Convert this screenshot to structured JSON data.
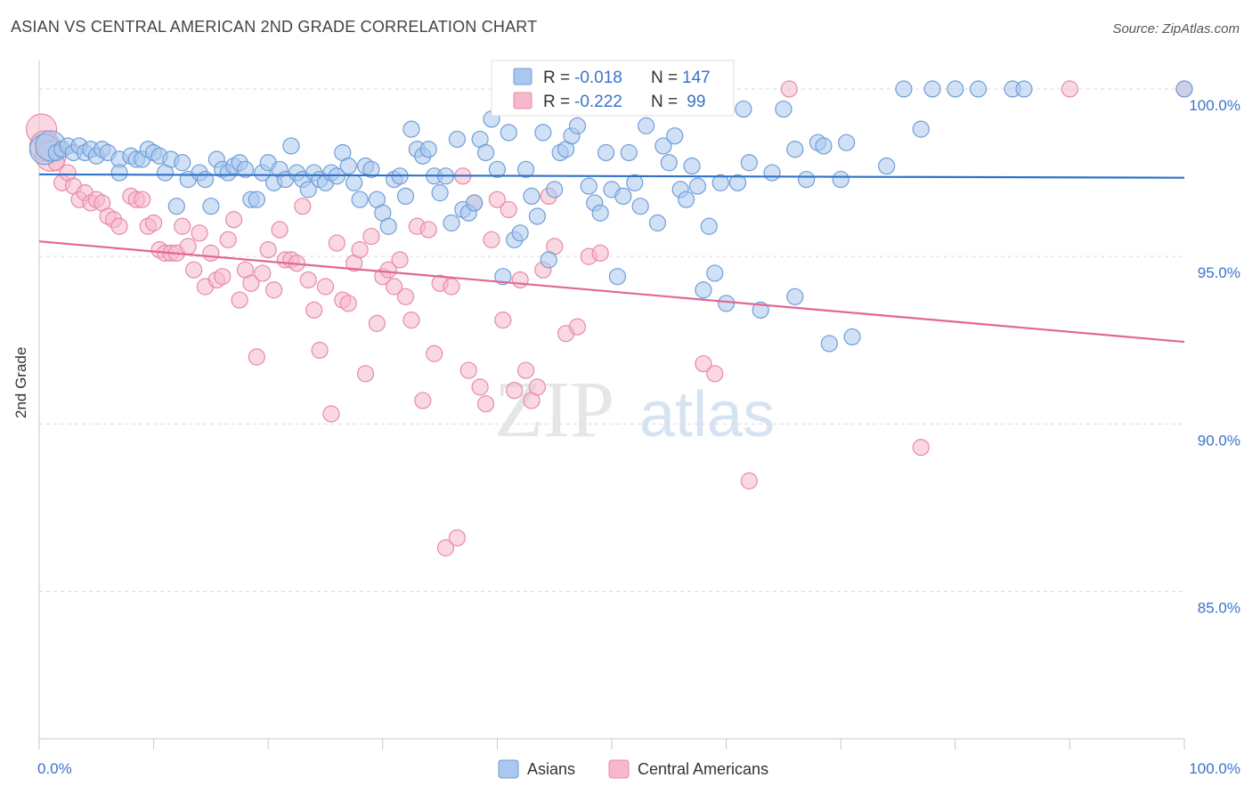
{
  "header": {
    "title": "ASIAN VS CENTRAL AMERICAN 2ND GRADE CORRELATION CHART",
    "source": "Source: ZipAtlas.com"
  },
  "watermark": {
    "zip": "ZIP",
    "atlas": "atlas"
  },
  "legend_top": {
    "row1": {
      "r_label": "R =",
      "r_value": "-0.018",
      "n_label": "N =",
      "n_value": "147"
    },
    "row2": {
      "r_label": "R =",
      "r_value": "-0.222",
      "n_label": "N =",
      "n_value": " 99"
    }
  },
  "legend_bottom": {
    "asians": "Asians",
    "central": "Central Americans"
  },
  "axis": {
    "x_min_label": "0.0%",
    "x_max_label": "100.0%",
    "y_label": "2nd Grade",
    "y_ticks": [
      "100.0%",
      "95.0%",
      "90.0%",
      "85.0%"
    ]
  },
  "colors": {
    "asian_fill": "#aac8ef",
    "asian_stroke": "#6f9ed8",
    "asian_line": "#2f72c8",
    "central_fill": "#f6b8cb",
    "central_stroke": "#e88aa8",
    "central_line": "#e26794",
    "accent_text": "#3a73c9",
    "grid": "#d9d9d9"
  },
  "chart_data": {
    "type": "scatter",
    "xlim": [
      0,
      100
    ],
    "ylim": [
      80.6,
      100.85
    ],
    "y_ticks": [
      100,
      95,
      90,
      85
    ],
    "grid": true,
    "series": [
      {
        "name": "Asians",
        "trend": [
          [
            0,
            97.45
          ],
          [
            100,
            97.35
          ]
        ],
        "points": [
          [
            0.5,
            98.2
          ],
          [
            1,
            98.3
          ],
          [
            1.5,
            98.1
          ],
          [
            2,
            98.2
          ],
          [
            2.5,
            98.3
          ],
          [
            3,
            98.1
          ],
          [
            3.5,
            98.3
          ],
          [
            4,
            98.1
          ],
          [
            4.5,
            98.2
          ],
          [
            5,
            98.0
          ],
          [
            5.5,
            98.2
          ],
          [
            6,
            98.1
          ],
          [
            7,
            97.9
          ],
          [
            7,
            97.5
          ],
          [
            8,
            98.0
          ],
          [
            8.5,
            97.9
          ],
          [
            9,
            97.9
          ],
          [
            9.5,
            98.2
          ],
          [
            10,
            98.1
          ],
          [
            10.5,
            98.0
          ],
          [
            11,
            97.5
          ],
          [
            11.5,
            97.9
          ],
          [
            12,
            96.5
          ],
          [
            12.5,
            97.8
          ],
          [
            13,
            97.3
          ],
          [
            14,
            97.5
          ],
          [
            14.5,
            97.3
          ],
          [
            15,
            96.5
          ],
          [
            15.5,
            97.9
          ],
          [
            16,
            97.6
          ],
          [
            16.5,
            97.5
          ],
          [
            17,
            97.7
          ],
          [
            17.5,
            97.8
          ],
          [
            18,
            97.6
          ],
          [
            18.5,
            96.7
          ],
          [
            19,
            96.7
          ],
          [
            19.5,
            97.5
          ],
          [
            20,
            97.8
          ],
          [
            20.5,
            97.2
          ],
          [
            21,
            97.6
          ],
          [
            21.5,
            97.3
          ],
          [
            22,
            98.3
          ],
          [
            22.5,
            97.5
          ],
          [
            23,
            97.3
          ],
          [
            23.5,
            97.0
          ],
          [
            24,
            97.5
          ],
          [
            24.5,
            97.3
          ],
          [
            25,
            97.2
          ],
          [
            25.5,
            97.5
          ],
          [
            26,
            97.4
          ],
          [
            26.5,
            98.1
          ],
          [
            27,
            97.7
          ],
          [
            27.5,
            97.2
          ],
          [
            28,
            96.7
          ],
          [
            28.5,
            97.7
          ],
          [
            29,
            97.6
          ],
          [
            29.5,
            96.7
          ],
          [
            30,
            96.3
          ],
          [
            30.5,
            95.9
          ],
          [
            31,
            97.3
          ],
          [
            31.5,
            97.4
          ],
          [
            32,
            96.8
          ],
          [
            32.5,
            98.8
          ],
          [
            33,
            98.2
          ],
          [
            33.5,
            98.0
          ],
          [
            34,
            98.2
          ],
          [
            34.5,
            97.4
          ],
          [
            35,
            96.9
          ],
          [
            35.5,
            97.4
          ],
          [
            36,
            96.0
          ],
          [
            36.5,
            98.5
          ],
          [
            37,
            96.4
          ],
          [
            37.5,
            96.3
          ],
          [
            38,
            96.6
          ],
          [
            38.5,
            98.5
          ],
          [
            39,
            98.1
          ],
          [
            39.5,
            99.1
          ],
          [
            40,
            97.6
          ],
          [
            40.5,
            94.4
          ],
          [
            41,
            98.7
          ],
          [
            41.5,
            95.5
          ],
          [
            42,
            95.7
          ],
          [
            42.5,
            97.6
          ],
          [
            43,
            96.8
          ],
          [
            43.5,
            96.2
          ],
          [
            44,
            98.7
          ],
          [
            44.5,
            94.9
          ],
          [
            45,
            97.0
          ],
          [
            45.5,
            98.1
          ],
          [
            46,
            98.2
          ],
          [
            46.5,
            98.6
          ],
          [
            47,
            98.9
          ],
          [
            48,
            97.1
          ],
          [
            48.5,
            96.6
          ],
          [
            49,
            96.3
          ],
          [
            49.5,
            98.1
          ],
          [
            50,
            97.0
          ],
          [
            50.5,
            94.4
          ],
          [
            51,
            96.8
          ],
          [
            51.5,
            98.1
          ],
          [
            52,
            97.2
          ],
          [
            52.5,
            96.5
          ],
          [
            53,
            98.9
          ],
          [
            54,
            96.0
          ],
          [
            54.5,
            98.3
          ],
          [
            55,
            97.8
          ],
          [
            55.5,
            98.6
          ],
          [
            56,
            97.0
          ],
          [
            56.5,
            96.7
          ],
          [
            57,
            97.7
          ],
          [
            57.5,
            97.1
          ],
          [
            58,
            94.0
          ],
          [
            58.5,
            95.9
          ],
          [
            59,
            94.5
          ],
          [
            59.5,
            97.2
          ],
          [
            60,
            93.6
          ],
          [
            61,
            97.2
          ],
          [
            61.5,
            99.4
          ],
          [
            62,
            97.8
          ],
          [
            63,
            93.4
          ],
          [
            64,
            97.5
          ],
          [
            65,
            99.4
          ],
          [
            66,
            98.2
          ],
          [
            66,
            93.8
          ],
          [
            67,
            97.3
          ],
          [
            68,
            98.4
          ],
          [
            68.5,
            98.3
          ],
          [
            69,
            92.4
          ],
          [
            70,
            97.3
          ],
          [
            70.5,
            98.4
          ],
          [
            71,
            92.6
          ],
          [
            74,
            97.7
          ],
          [
            75.5,
            100
          ],
          [
            77,
            98.8
          ],
          [
            78,
            100
          ],
          [
            80,
            100
          ],
          [
            82,
            100
          ],
          [
            85,
            100
          ],
          [
            86,
            100
          ],
          [
            100,
            100
          ]
        ]
      },
      {
        "name": "Central Americans",
        "trend": [
          [
            0,
            95.45
          ],
          [
            100,
            92.45
          ]
        ],
        "points": [
          [
            0.2,
            98.8
          ],
          [
            0.5,
            98.3
          ],
          [
            1,
            98.0
          ],
          [
            1.5,
            97.8
          ],
          [
            2,
            97.2
          ],
          [
            2.5,
            97.5
          ],
          [
            3,
            97.1
          ],
          [
            3.5,
            96.7
          ],
          [
            4,
            96.9
          ],
          [
            4.5,
            96.6
          ],
          [
            5,
            96.7
          ],
          [
            5.5,
            96.6
          ],
          [
            6,
            96.2
          ],
          [
            6.5,
            96.1
          ],
          [
            7,
            95.9
          ],
          [
            8,
            96.8
          ],
          [
            8.5,
            96.7
          ],
          [
            9,
            96.7
          ],
          [
            9.5,
            95.9
          ],
          [
            10,
            96.0
          ],
          [
            10.5,
            95.2
          ],
          [
            11,
            95.1
          ],
          [
            11.5,
            95.1
          ],
          [
            12,
            95.1
          ],
          [
            12.5,
            95.9
          ],
          [
            13,
            95.3
          ],
          [
            13.5,
            94.6
          ],
          [
            14,
            95.7
          ],
          [
            14.5,
            94.1
          ],
          [
            15,
            95.1
          ],
          [
            15.5,
            94.3
          ],
          [
            16,
            94.4
          ],
          [
            16.5,
            95.5
          ],
          [
            17,
            96.1
          ],
          [
            17.5,
            93.7
          ],
          [
            18,
            94.6
          ],
          [
            18.5,
            94.2
          ],
          [
            19,
            92.0
          ],
          [
            19.5,
            94.5
          ],
          [
            20,
            95.2
          ],
          [
            20.5,
            94.0
          ],
          [
            21,
            95.8
          ],
          [
            21.5,
            94.9
          ],
          [
            22,
            94.9
          ],
          [
            22.5,
            94.8
          ],
          [
            23,
            96.5
          ],
          [
            23.5,
            94.3
          ],
          [
            24,
            93.4
          ],
          [
            24.5,
            92.2
          ],
          [
            25,
            94.1
          ],
          [
            25.5,
            90.3
          ],
          [
            26,
            95.4
          ],
          [
            26.5,
            93.7
          ],
          [
            27,
            93.6
          ],
          [
            27.5,
            94.8
          ],
          [
            28,
            95.2
          ],
          [
            28.5,
            91.5
          ],
          [
            29,
            95.6
          ],
          [
            29.5,
            93.0
          ],
          [
            30,
            94.4
          ],
          [
            30.5,
            94.6
          ],
          [
            31,
            94.1
          ],
          [
            31.5,
            94.9
          ],
          [
            32,
            93.8
          ],
          [
            32.5,
            93.1
          ],
          [
            33,
            95.9
          ],
          [
            33.5,
            90.7
          ],
          [
            34,
            95.8
          ],
          [
            34.5,
            92.1
          ],
          [
            35,
            94.2
          ],
          [
            35.5,
            86.3
          ],
          [
            36,
            94.1
          ],
          [
            36.5,
            86.6
          ],
          [
            37,
            97.4
          ],
          [
            37.5,
            91.6
          ],
          [
            38,
            96.6
          ],
          [
            38.5,
            91.1
          ],
          [
            39,
            90.6
          ],
          [
            39.5,
            95.5
          ],
          [
            40,
            96.7
          ],
          [
            40.5,
            93.1
          ],
          [
            41,
            96.4
          ],
          [
            41.5,
            91.0
          ],
          [
            42,
            94.3
          ],
          [
            42.5,
            91.6
          ],
          [
            43,
            90.7
          ],
          [
            43.5,
            91.1
          ],
          [
            44,
            94.6
          ],
          [
            44.5,
            96.8
          ],
          [
            45,
            95.3
          ],
          [
            46,
            92.7
          ],
          [
            47,
            92.9
          ],
          [
            48,
            95.0
          ],
          [
            49,
            95.1
          ],
          [
            58,
            91.8
          ],
          [
            59,
            91.5
          ],
          [
            62,
            88.3
          ],
          [
            65.5,
            100
          ],
          [
            77,
            89.3
          ],
          [
            90,
            100
          ],
          [
            100,
            100
          ]
        ]
      }
    ]
  }
}
